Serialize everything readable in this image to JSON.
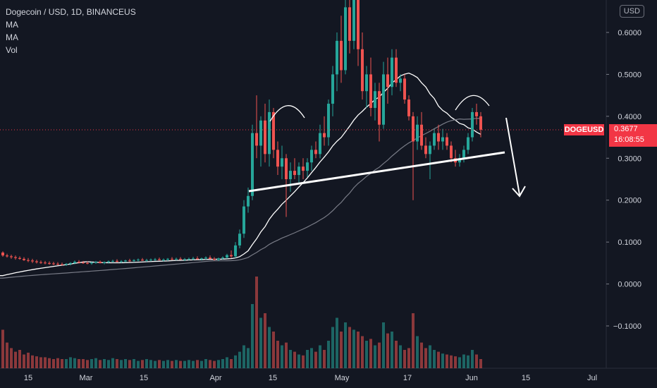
{
  "legend": {
    "symbol": "Dogecoin / USD, 1D, BINANCEUS",
    "ma1": "MA",
    "ma2": "MA",
    "vol": "Vol"
  },
  "currency_button": "USD",
  "price_tag": {
    "symbol": "DOGEUSD",
    "price": "0.3677",
    "countdown": "16:08:55"
  },
  "colors": {
    "background": "#131722",
    "up": "#26a69a",
    "down": "#ef5350",
    "ma_fast": "#ffffff",
    "ma_slow": "#787b86",
    "drawing": "#ffffff"
  },
  "chart_data": {
    "type": "candlestick",
    "title": "Dogecoin / USD, 1D, BINANCEUS",
    "y_ticks": [
      "0.6000",
      "0.5000",
      "0.4000",
      "0.3000",
      "0.2000",
      "0.1000",
      "0.0000",
      "−0.1000"
    ],
    "x_ticks": [
      "15",
      "Mar",
      "15",
      "Apr",
      "15",
      "May",
      "17",
      "Jun",
      "15",
      "Jul"
    ],
    "ylim": [
      -0.19,
      0.68
    ],
    "last_price": 0.3677,
    "grid": false,
    "candles_ohlc": [
      [
        0.075,
        0.078,
        0.065,
        0.068
      ],
      [
        0.068,
        0.072,
        0.063,
        0.066
      ],
      [
        0.066,
        0.07,
        0.06,
        0.064
      ],
      [
        0.064,
        0.068,
        0.058,
        0.062
      ],
      [
        0.062,
        0.066,
        0.058,
        0.06
      ],
      [
        0.06,
        0.064,
        0.055,
        0.057
      ],
      [
        0.057,
        0.062,
        0.052,
        0.056
      ],
      [
        0.056,
        0.06,
        0.05,
        0.054
      ],
      [
        0.054,
        0.058,
        0.049,
        0.052
      ],
      [
        0.052,
        0.056,
        0.048,
        0.051
      ],
      [
        0.051,
        0.055,
        0.047,
        0.05
      ],
      [
        0.05,
        0.054,
        0.046,
        0.049
      ],
      [
        0.049,
        0.053,
        0.045,
        0.048
      ],
      [
        0.048,
        0.052,
        0.045,
        0.047
      ],
      [
        0.047,
        0.051,
        0.044,
        0.046
      ],
      [
        0.046,
        0.05,
        0.043,
        0.048
      ],
      [
        0.048,
        0.052,
        0.044,
        0.05
      ],
      [
        0.05,
        0.056,
        0.047,
        0.053
      ],
      [
        0.053,
        0.057,
        0.049,
        0.051
      ],
      [
        0.051,
        0.055,
        0.048,
        0.05
      ],
      [
        0.05,
        0.054,
        0.047,
        0.049
      ],
      [
        0.049,
        0.053,
        0.046,
        0.051
      ],
      [
        0.051,
        0.055,
        0.048,
        0.053
      ],
      [
        0.053,
        0.056,
        0.049,
        0.05
      ],
      [
        0.05,
        0.054,
        0.047,
        0.052
      ],
      [
        0.052,
        0.056,
        0.049,
        0.054
      ],
      [
        0.054,
        0.058,
        0.051,
        0.055
      ],
      [
        0.055,
        0.059,
        0.052,
        0.053
      ],
      [
        0.053,
        0.057,
        0.05,
        0.054
      ],
      [
        0.054,
        0.058,
        0.051,
        0.056
      ],
      [
        0.056,
        0.06,
        0.053,
        0.055
      ],
      [
        0.055,
        0.059,
        0.052,
        0.057
      ],
      [
        0.057,
        0.061,
        0.054,
        0.058
      ],
      [
        0.058,
        0.062,
        0.055,
        0.056
      ],
      [
        0.056,
        0.06,
        0.053,
        0.057
      ],
      [
        0.057,
        0.061,
        0.054,
        0.058
      ],
      [
        0.058,
        0.062,
        0.055,
        0.059
      ],
      [
        0.059,
        0.063,
        0.056,
        0.057
      ],
      [
        0.057,
        0.061,
        0.054,
        0.058
      ],
      [
        0.058,
        0.062,
        0.055,
        0.06
      ],
      [
        0.06,
        0.064,
        0.057,
        0.059
      ],
      [
        0.059,
        0.063,
        0.056,
        0.06
      ],
      [
        0.06,
        0.064,
        0.057,
        0.058
      ],
      [
        0.058,
        0.062,
        0.055,
        0.059
      ],
      [
        0.059,
        0.063,
        0.056,
        0.06
      ],
      [
        0.06,
        0.065,
        0.057,
        0.061
      ],
      [
        0.061,
        0.066,
        0.058,
        0.059
      ],
      [
        0.059,
        0.063,
        0.056,
        0.061
      ],
      [
        0.061,
        0.066,
        0.058,
        0.063
      ],
      [
        0.063,
        0.068,
        0.059,
        0.06
      ],
      [
        0.06,
        0.064,
        0.056,
        0.058
      ],
      [
        0.058,
        0.063,
        0.055,
        0.061
      ],
      [
        0.061,
        0.066,
        0.058,
        0.063
      ],
      [
        0.063,
        0.072,
        0.06,
        0.069
      ],
      [
        0.069,
        0.08,
        0.062,
        0.066
      ],
      [
        0.066,
        0.1,
        0.062,
        0.092
      ],
      [
        0.092,
        0.13,
        0.085,
        0.12
      ],
      [
        0.12,
        0.2,
        0.11,
        0.185
      ],
      [
        0.185,
        0.23,
        0.17,
        0.21
      ],
      [
        0.21,
        0.38,
        0.2,
        0.36
      ],
      [
        0.36,
        0.45,
        0.3,
        0.33
      ],
      [
        0.33,
        0.4,
        0.28,
        0.39
      ],
      [
        0.39,
        0.43,
        0.29,
        0.31
      ],
      [
        0.31,
        0.44,
        0.28,
        0.41
      ],
      [
        0.41,
        0.42,
        0.3,
        0.32
      ],
      [
        0.32,
        0.34,
        0.26,
        0.28
      ],
      [
        0.28,
        0.33,
        0.25,
        0.3
      ],
      [
        0.3,
        0.31,
        0.16,
        0.25
      ],
      [
        0.25,
        0.29,
        0.22,
        0.27
      ],
      [
        0.27,
        0.3,
        0.25,
        0.26
      ],
      [
        0.26,
        0.29,
        0.24,
        0.28
      ],
      [
        0.28,
        0.3,
        0.25,
        0.27
      ],
      [
        0.27,
        0.3,
        0.255,
        0.29
      ],
      [
        0.29,
        0.33,
        0.27,
        0.32
      ],
      [
        0.32,
        0.34,
        0.3,
        0.31
      ],
      [
        0.31,
        0.38,
        0.3,
        0.36
      ],
      [
        0.36,
        0.4,
        0.33,
        0.35
      ],
      [
        0.35,
        0.44,
        0.33,
        0.43
      ],
      [
        0.43,
        0.52,
        0.4,
        0.5
      ],
      [
        0.5,
        0.6,
        0.46,
        0.58
      ],
      [
        0.58,
        0.64,
        0.48,
        0.51
      ],
      [
        0.51,
        0.69,
        0.5,
        0.66
      ],
      [
        0.66,
        0.7,
        0.55,
        0.58
      ],
      [
        0.58,
        0.72,
        0.56,
        0.7
      ],
      [
        0.7,
        0.73,
        0.52,
        0.56
      ],
      [
        0.56,
        0.6,
        0.44,
        0.46
      ],
      [
        0.46,
        0.52,
        0.42,
        0.5
      ],
      [
        0.5,
        0.54,
        0.4,
        0.42
      ],
      [
        0.42,
        0.48,
        0.39,
        0.46
      ],
      [
        0.46,
        0.48,
        0.34,
        0.38
      ],
      [
        0.38,
        0.53,
        0.37,
        0.5
      ],
      [
        0.5,
        0.54,
        0.43,
        0.47
      ],
      [
        0.47,
        0.56,
        0.45,
        0.54
      ],
      [
        0.54,
        0.56,
        0.47,
        0.48
      ],
      [
        0.48,
        0.5,
        0.46,
        0.49
      ],
      [
        0.49,
        0.5,
        0.43,
        0.44
      ],
      [
        0.44,
        0.45,
        0.39,
        0.4
      ],
      [
        0.4,
        0.41,
        0.2,
        0.34
      ],
      [
        0.34,
        0.4,
        0.32,
        0.38
      ],
      [
        0.38,
        0.41,
        0.32,
        0.33
      ],
      [
        0.33,
        0.35,
        0.3,
        0.31
      ],
      [
        0.31,
        0.34,
        0.25,
        0.33
      ],
      [
        0.33,
        0.37,
        0.32,
        0.36
      ],
      [
        0.36,
        0.38,
        0.32,
        0.34
      ],
      [
        0.34,
        0.37,
        0.32,
        0.35
      ],
      [
        0.35,
        0.36,
        0.32,
        0.33
      ],
      [
        0.33,
        0.34,
        0.29,
        0.3
      ],
      [
        0.3,
        0.32,
        0.28,
        0.29
      ],
      [
        0.29,
        0.31,
        0.28,
        0.3
      ],
      [
        0.3,
        0.33,
        0.29,
        0.32
      ],
      [
        0.32,
        0.36,
        0.31,
        0.35
      ],
      [
        0.35,
        0.42,
        0.34,
        0.41
      ],
      [
        0.41,
        0.43,
        0.38,
        0.4
      ],
      [
        0.4,
        0.41,
        0.35,
        0.368
      ]
    ],
    "volume": [
      0.42,
      0.28,
      0.22,
      0.18,
      0.2,
      0.15,
      0.17,
      0.14,
      0.13,
      0.12,
      0.12,
      0.11,
      0.1,
      0.11,
      0.1,
      0.1,
      0.12,
      0.11,
      0.1,
      0.1,
      0.09,
      0.1,
      0.11,
      0.09,
      0.1,
      0.09,
      0.11,
      0.1,
      0.09,
      0.1,
      0.09,
      0.1,
      0.08,
      0.09,
      0.1,
      0.09,
      0.08,
      0.09,
      0.08,
      0.09,
      0.08,
      0.09,
      0.08,
      0.08,
      0.09,
      0.08,
      0.09,
      0.08,
      0.1,
      0.09,
      0.08,
      0.09,
      0.1,
      0.12,
      0.1,
      0.14,
      0.18,
      0.25,
      0.22,
      0.7,
      1.0,
      0.55,
      0.6,
      0.45,
      0.4,
      0.3,
      0.25,
      0.28,
      0.2,
      0.18,
      0.15,
      0.14,
      0.2,
      0.22,
      0.18,
      0.25,
      0.2,
      0.3,
      0.45,
      0.55,
      0.4,
      0.5,
      0.45,
      0.42,
      0.4,
      0.35,
      0.3,
      0.32,
      0.25,
      0.28,
      0.5,
      0.38,
      0.4,
      0.3,
      0.25,
      0.2,
      0.22,
      0.6,
      0.35,
      0.28,
      0.22,
      0.25,
      0.2,
      0.18,
      0.16,
      0.15,
      0.14,
      0.13,
      0.12,
      0.15,
      0.14,
      0.2,
      0.15,
      0.1
    ],
    "ma_fast_start": 0.02,
    "ma_slow_start": 0.014
  }
}
